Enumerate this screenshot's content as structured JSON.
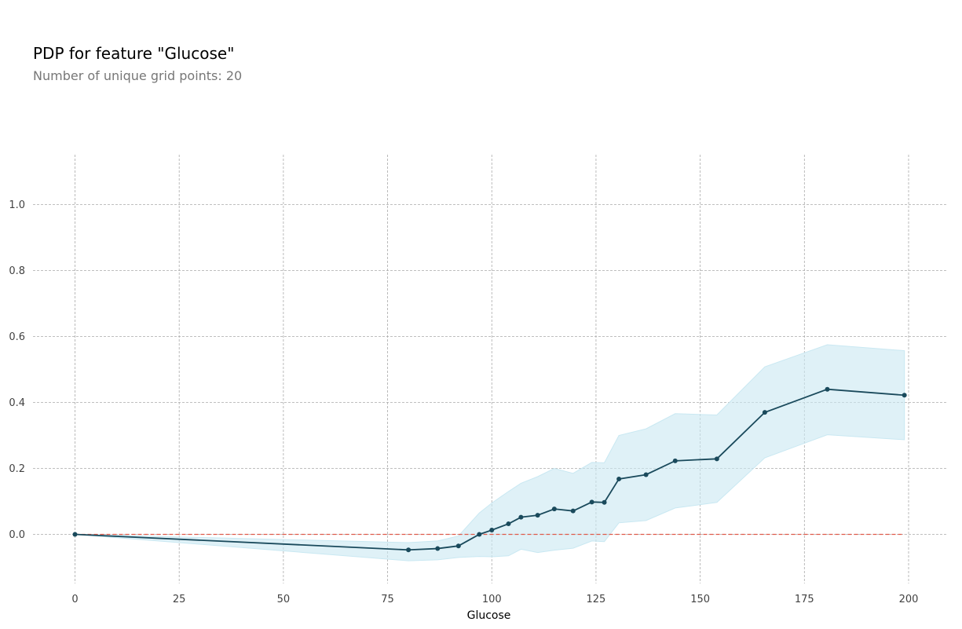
{
  "chart_data": {
    "type": "line",
    "title": "PDP for feature \"Glucose\"",
    "subtitle": "Number of unique grid points: 20",
    "xlabel": "Glucose",
    "ylabel": "",
    "xlim": [
      -10,
      210
    ],
    "ylim": [
      -0.17,
      1.15
    ],
    "xticks": [
      0,
      25,
      50,
      75,
      100,
      125,
      150,
      175,
      200
    ],
    "xtick_labels": [
      "0",
      "25",
      "50",
      "75",
      "100",
      "125",
      "150",
      "175",
      "200"
    ],
    "yticks": [
      0.0,
      0.2,
      0.4,
      0.6,
      0.8,
      1.0
    ],
    "ytick_labels": [
      "0.0",
      "0.2",
      "0.4",
      "0.6",
      "0.8",
      "1.0"
    ],
    "grid": true,
    "x": [
      0,
      80,
      87,
      92,
      97,
      100,
      104,
      107,
      111,
      115,
      119.5,
      124,
      127,
      130.5,
      137,
      144,
      154,
      165.5,
      180.5,
      199
    ],
    "series": [
      {
        "values": [
          0.0,
          -0.047,
          -0.043,
          -0.035,
          0.0,
          0.013,
          0.032,
          0.052,
          0.058,
          0.077,
          0.071,
          0.098,
          0.097,
          0.168,
          0.181,
          0.223,
          0.229,
          0.37,
          0.44,
          0.422
        ],
        "upper": [
          0.0,
          -0.025,
          -0.02,
          -0.005,
          0.065,
          0.095,
          0.13,
          0.155,
          0.175,
          0.2,
          0.185,
          0.218,
          0.217,
          0.3,
          0.32,
          0.366,
          0.362,
          0.508,
          0.575,
          0.557
        ],
        "lower": [
          0.0,
          -0.08,
          -0.077,
          -0.07,
          -0.067,
          -0.068,
          -0.065,
          -0.045,
          -0.055,
          -0.048,
          -0.042,
          -0.02,
          -0.022,
          0.035,
          0.042,
          0.08,
          0.097,
          0.232,
          0.302,
          0.287
        ],
        "color": "#1a4a5c",
        "band_color": "#c9e8f2"
      }
    ],
    "baseline": {
      "y": 0.0,
      "x_range": [
        0,
        199
      ],
      "color": "#e05a4a",
      "style": "dashed"
    },
    "grid_color": "#aaaaaa"
  }
}
